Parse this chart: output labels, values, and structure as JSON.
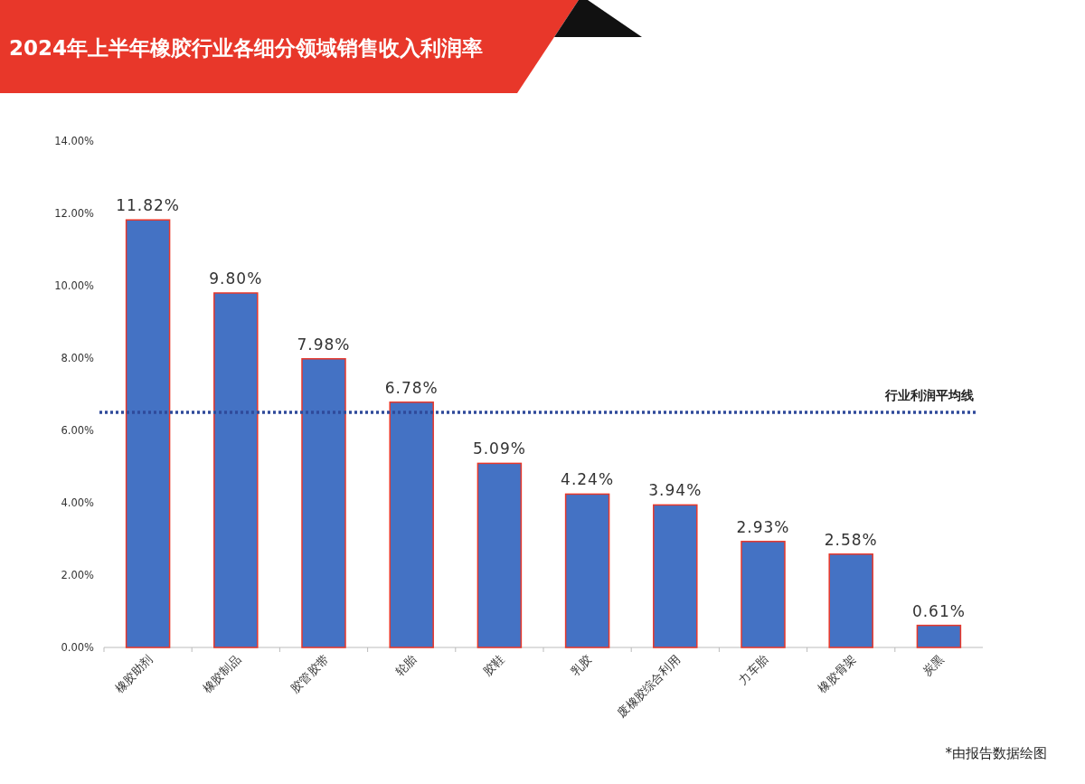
{
  "chart_data": {
    "type": "bar",
    "title": "2024年上半年橡胶行业各细分领域销售收入利润率",
    "categories": [
      "橡胶助剂",
      "橡胶制品",
      "胶管胶带",
      "轮胎",
      "胶鞋",
      "乳胶",
      "废橡胶综合利用",
      "力车胎",
      "橡胶骨架",
      "炭黑"
    ],
    "values": [
      11.82,
      9.8,
      7.98,
      6.78,
      5.09,
      4.24,
      3.94,
      2.93,
      2.58,
      0.61
    ],
    "value_labels": [
      "11.82%",
      "9.80%",
      "7.98%",
      "6.78%",
      "5.09%",
      "4.24%",
      "3.94%",
      "2.93%",
      "2.58%",
      "0.61%"
    ],
    "color": "#4472c4",
    "ylim": [
      0,
      14
    ],
    "yticks": [
      {
        "value": 0,
        "label": "0.00%"
      },
      {
        "value": 2,
        "label": "2.00%"
      },
      {
        "value": 4,
        "label": "4.00%"
      },
      {
        "value": 6,
        "label": "6.00%"
      },
      {
        "value": 8,
        "label": "8.00%"
      },
      {
        "value": 10,
        "label": "10.00%"
      },
      {
        "value": 12,
        "label": "12.00%"
      },
      {
        "value": 14,
        "label": "14.00%"
      }
    ],
    "ref_lines": [
      {
        "axis": "y",
        "value": 6.5,
        "label": "行业利润平均线",
        "color": "#2f4a9a",
        "line_style": "dotted"
      }
    ],
    "annotations": [
      "*由报告数据绘图"
    ]
  }
}
